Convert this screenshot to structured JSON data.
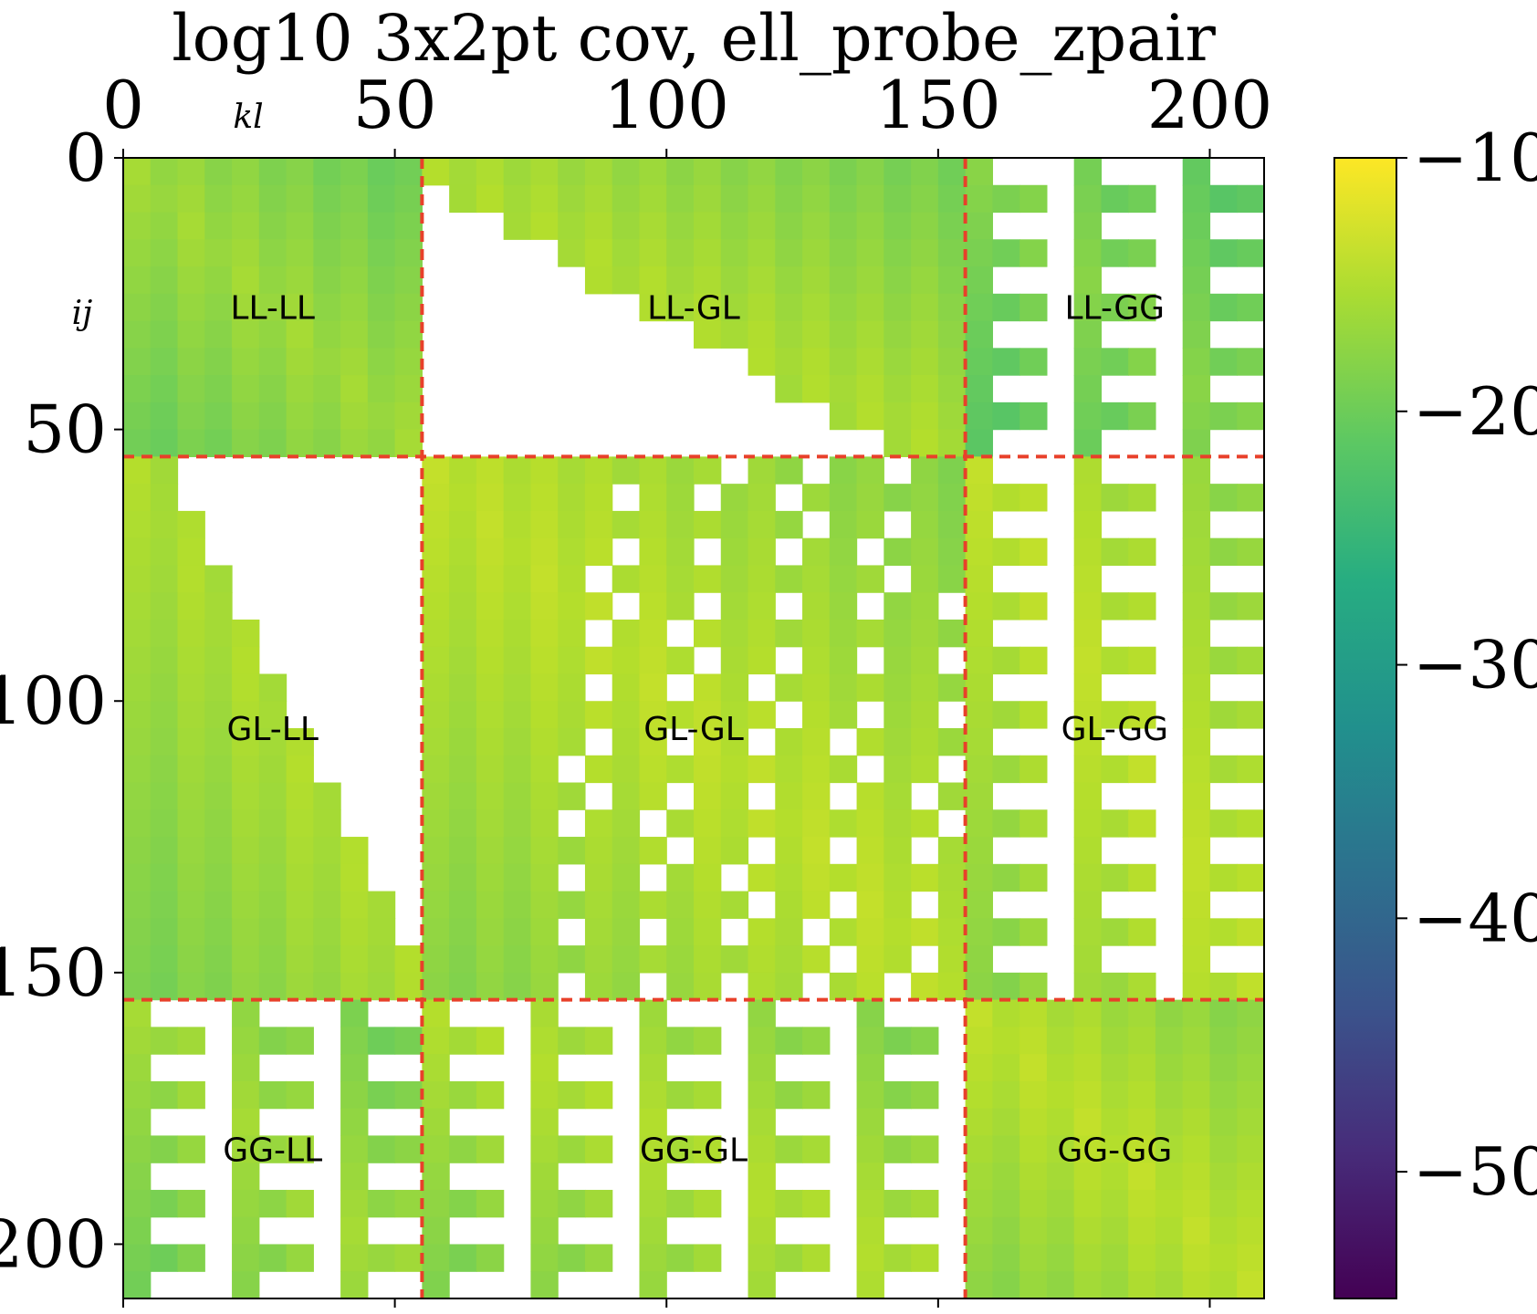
{
  "chart_data": {
    "type": "heatmap",
    "title": "log10 3x2pt cov, ell_probe_zpair",
    "xlabel": "kl",
    "ylabel": "ij",
    "xlim": [
      0,
      210
    ],
    "ylim": [
      0,
      210
    ],
    "x_ticks": [
      {
        "value": 0,
        "label": "0"
      },
      {
        "value": 50,
        "label": "50"
      },
      {
        "value": 100,
        "label": "100"
      },
      {
        "value": 150,
        "label": "150"
      },
      {
        "value": 200,
        "label": "200"
      }
    ],
    "y_ticks": [
      {
        "value": 0,
        "label": "0"
      },
      {
        "value": 50,
        "label": "50"
      },
      {
        "value": 100,
        "label": "100"
      },
      {
        "value": 150,
        "label": "150"
      },
      {
        "value": 200,
        "label": "200"
      }
    ],
    "block_boundaries": [
      55,
      155
    ],
    "blocks": [
      {
        "label": "LL-LL",
        "row": 0,
        "col": 0,
        "base_value": -16,
        "masked": "none"
      },
      {
        "label": "LL-GL",
        "row": 0,
        "col": 1,
        "base_value": -15,
        "masked": "lower"
      },
      {
        "label": "LL-GG",
        "row": 0,
        "col": 2,
        "base_value": -18,
        "masked": "sawtooth"
      },
      {
        "label": "GL-LL",
        "row": 1,
        "col": 0,
        "base_value": -15,
        "masked": "upper"
      },
      {
        "label": "GL-GL",
        "row": 1,
        "col": 1,
        "base_value": -14,
        "masked": "patchy"
      },
      {
        "label": "GL-GG",
        "row": 1,
        "col": 2,
        "base_value": -14,
        "masked": "sawtooth"
      },
      {
        "label": "GG-LL",
        "row": 2,
        "col": 0,
        "base_value": -16,
        "masked": "sawtooth"
      },
      {
        "label": "GG-GL",
        "row": 2,
        "col": 1,
        "base_value": -15,
        "masked": "sawtooth"
      },
      {
        "label": "GG-GG",
        "row": 2,
        "col": 2,
        "base_value": -14,
        "masked": "none"
      }
    ],
    "colorbar": {
      "colormap": "viridis",
      "vmin": -55,
      "vmax": -10,
      "ticks": [
        {
          "value": -10,
          "label": "−10"
        },
        {
          "value": -20,
          "label": "−20"
        },
        {
          "value": -30,
          "label": "−30"
        },
        {
          "value": -40,
          "label": "−40"
        },
        {
          "value": -50,
          "label": "−50"
        }
      ]
    },
    "divider_color": "#e8402a"
  }
}
